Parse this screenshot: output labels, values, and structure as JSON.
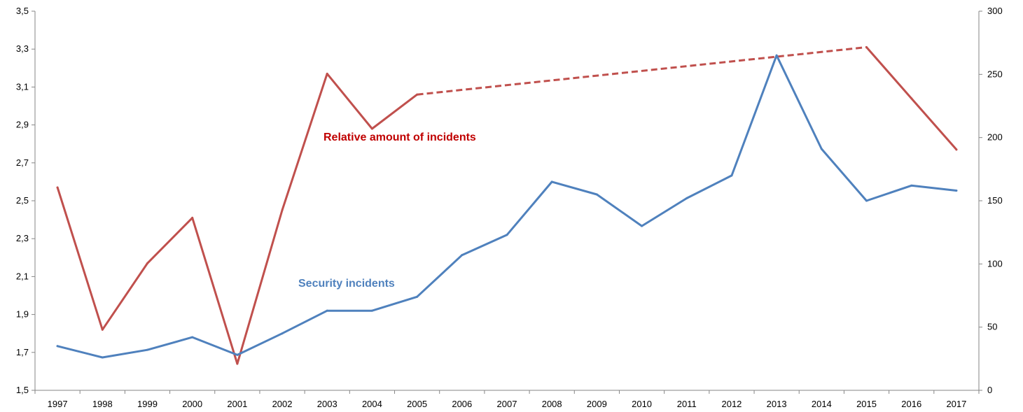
{
  "chart_data": {
    "type": "line",
    "categories": [
      "1997",
      "1998",
      "1999",
      "2000",
      "2001",
      "2002",
      "2003",
      "2004",
      "2005",
      "2006",
      "2007",
      "2008",
      "2009",
      "2010",
      "2011",
      "2012",
      "2013",
      "2014",
      "2015",
      "2016",
      "2017"
    ],
    "y_left": {
      "range": [
        1.5,
        3.5
      ],
      "ticks": [
        1.5,
        1.7,
        1.9,
        2.1,
        2.3,
        2.5,
        2.7,
        2.9,
        3.1,
        3.3,
        3.5
      ],
      "tick_labels": [
        "1,5",
        "1,7",
        "1,9",
        "2,1",
        "2,3",
        "2,5",
        "2,7",
        "2,9",
        "3,1",
        "3,3",
        "3,5"
      ]
    },
    "y_right": {
      "range": [
        0,
        300
      ],
      "ticks": [
        0,
        50,
        100,
        150,
        200,
        250,
        300
      ],
      "tick_labels": [
        "0",
        "50",
        "100",
        "150",
        "200",
        "250",
        "300"
      ]
    },
    "grid": false,
    "legend": "none",
    "series": [
      {
        "name": "Relative amount of incidents",
        "axis": "left",
        "color": "#c0504d",
        "label_color": "#c00000",
        "values": [
          2.57,
          1.82,
          2.17,
          2.41,
          1.64,
          2.45,
          3.17,
          2.88,
          3.06,
          null,
          null,
          null,
          null,
          null,
          null,
          null,
          null,
          null,
          3.31,
          3.04,
          2.77
        ],
        "dashed_segment": {
          "from": "2005",
          "to": "2015"
        }
      },
      {
        "name": "Security incidents",
        "axis": "right",
        "color": "#4f81bd",
        "label_color": "#4f81bd",
        "values": [
          35,
          26,
          32,
          42,
          28,
          45,
          63,
          63,
          74,
          107,
          123,
          165,
          155,
          130,
          152,
          170,
          265,
          191,
          150,
          162,
          158
        ]
      }
    ]
  }
}
